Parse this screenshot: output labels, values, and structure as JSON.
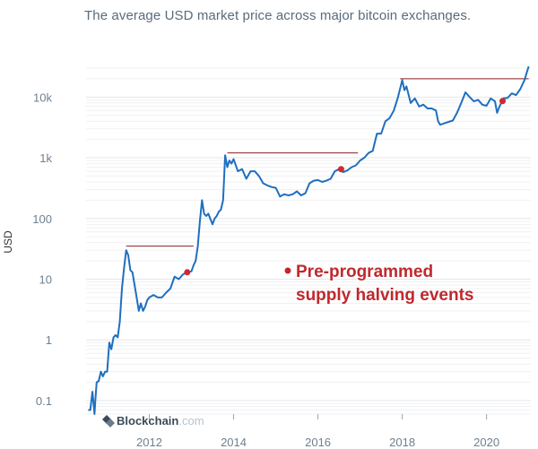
{
  "chart_data": {
    "type": "line",
    "subtitle": "The average USD market price across major bitcoin exchanges.",
    "ylabel": "USD",
    "y_scale": "log",
    "ylim": [
      0.06,
      30000
    ],
    "xlim": [
      2010.5,
      2021.05
    ],
    "y_ticks": [
      {
        "value": 0.1,
        "label": "0.1"
      },
      {
        "value": 1,
        "label": "1"
      },
      {
        "value": 10,
        "label": "10"
      },
      {
        "value": 100,
        "label": "100"
      },
      {
        "value": 1000,
        "label": "1k"
      },
      {
        "value": 10000,
        "label": "10k"
      }
    ],
    "x_ticks": [
      {
        "value": 2012,
        "label": "2012"
      },
      {
        "value": 2014,
        "label": "2014"
      },
      {
        "value": 2016,
        "label": "2016"
      },
      {
        "value": 2018,
        "label": "2018"
      },
      {
        "value": 2020,
        "label": "2020"
      }
    ],
    "grid": true,
    "line_color": "#1f6fbf",
    "series": [
      {
        "x": [
          2010.55,
          2010.6,
          2010.65,
          2010.7,
          2010.72,
          2010.75,
          2010.8,
          2010.85,
          2010.9,
          2010.95,
          2011.0,
          2011.05,
          2011.1,
          2011.15,
          2011.2,
          2011.25,
          2011.3,
          2011.35,
          2011.4,
          2011.45,
          2011.5,
          2011.55,
          2011.6,
          2011.65,
          2011.7,
          2011.75,
          2011.8,
          2011.85,
          2011.9,
          2011.95,
          2012.0,
          2012.1,
          2012.2,
          2012.3,
          2012.4,
          2012.5,
          2012.6,
          2012.7,
          2012.8,
          2012.9,
          2013.0,
          2013.05,
          2013.1,
          2013.15,
          2013.2,
          2013.25,
          2013.3,
          2013.35,
          2013.4,
          2013.5,
          2013.55,
          2013.6,
          2013.65,
          2013.7,
          2013.75,
          2013.8,
          2013.85,
          2013.9,
          2013.95,
          2014.0,
          2014.1,
          2014.2,
          2014.3,
          2014.4,
          2014.5,
          2014.6,
          2014.7,
          2014.8,
          2014.9,
          2015.0,
          2015.1,
          2015.2,
          2015.3,
          2015.4,
          2015.5,
          2015.6,
          2015.7,
          2015.8,
          2015.9,
          2016.0,
          2016.1,
          2016.2,
          2016.3,
          2016.4,
          2016.5,
          2016.6,
          2016.7,
          2016.8,
          2016.9,
          2017.0,
          2017.1,
          2017.2,
          2017.3,
          2017.4,
          2017.5,
          2017.6,
          2017.7,
          2017.8,
          2017.9,
          2018.0,
          2018.05,
          2018.1,
          2018.2,
          2018.3,
          2018.4,
          2018.5,
          2018.6,
          2018.7,
          2018.8,
          2018.85,
          2018.9,
          2019.0,
          2019.1,
          2019.2,
          2019.3,
          2019.4,
          2019.5,
          2019.6,
          2019.7,
          2019.8,
          2019.9,
          2020.0,
          2020.1,
          2020.2,
          2020.25,
          2020.3,
          2020.4,
          2020.5,
          2020.6,
          2020.7,
          2020.8,
          2020.9,
          2021.0
        ],
        "y": [
          0.07,
          0.07,
          0.14,
          0.06,
          0.1,
          0.2,
          0.21,
          0.3,
          0.25,
          0.3,
          0.3,
          0.9,
          0.7,
          1.1,
          1.2,
          1.1,
          2,
          7,
          15,
          30,
          25,
          14,
          13,
          8,
          5,
          3,
          4,
          3,
          3.5,
          4.5,
          5,
          5.5,
          5,
          5,
          6,
          7,
          11,
          10,
          12,
          13,
          13.5,
          17,
          20,
          35,
          90,
          200,
          120,
          110,
          120,
          80,
          100,
          110,
          130,
          140,
          200,
          1100,
          700,
          900,
          800,
          950,
          600,
          650,
          450,
          600,
          600,
          500,
          380,
          350,
          330,
          320,
          230,
          250,
          240,
          250,
          280,
          240,
          260,
          380,
          420,
          430,
          400,
          420,
          450,
          600,
          650,
          580,
          620,
          700,
          750,
          900,
          1000,
          1200,
          1300,
          2500,
          2500,
          4000,
          4500,
          6000,
          10000,
          19000,
          13000,
          15000,
          8000,
          9500,
          7000,
          7500,
          6500,
          6500,
          6000,
          4000,
          3500,
          3700,
          3900,
          4100,
          5500,
          8000,
          12000,
          10000,
          8500,
          9000,
          7500,
          7200,
          9500,
          8500,
          5500,
          6800,
          9500,
          9700,
          11500,
          10800,
          13500,
          19000,
          32000
        ]
      }
    ],
    "halving_lines": [
      {
        "x_start": 2011.45,
        "x_end": 2013.05,
        "y": 35
      },
      {
        "x_start": 2013.85,
        "x_end": 2016.95,
        "y": 1200
      },
      {
        "x_start": 2017.95,
        "x_end": 2021.0,
        "y": 20000
      }
    ],
    "halving_markers": [
      {
        "x": 2012.9,
        "y": 13
      },
      {
        "x": 2016.55,
        "y": 650
      },
      {
        "x": 2020.38,
        "y": 8600
      }
    ],
    "annotation": {
      "lines": [
        "Pre-programmed",
        "supply halving events"
      ],
      "color": "#c0282d"
    },
    "watermark": {
      "brand": "Blockchain",
      "suffix": ".com"
    }
  }
}
